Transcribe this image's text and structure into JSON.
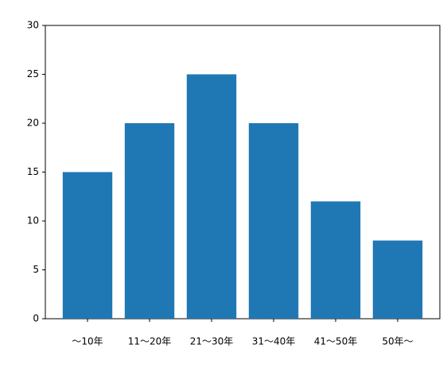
{
  "chart_data": {
    "type": "bar",
    "categories": [
      "～10年",
      "11～20年",
      "21～30年",
      "31～40年",
      "41～50年",
      "50年～"
    ],
    "values": [
      15,
      20,
      25,
      20,
      12,
      8
    ],
    "color": "#1f77b4",
    "ylim": [
      0,
      30
    ],
    "yticks": [
      0,
      5,
      10,
      15,
      20,
      25,
      30
    ]
  }
}
